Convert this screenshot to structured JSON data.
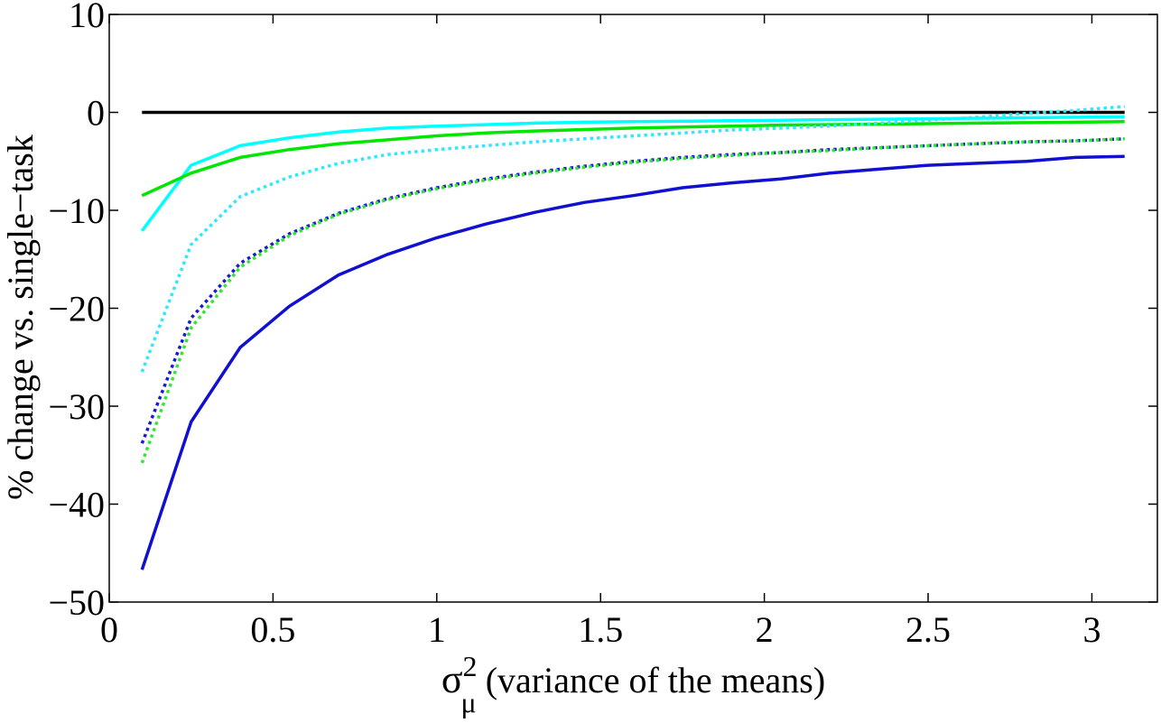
{
  "chart_data": {
    "type": "line",
    "title": "",
    "xlabel": {
      "symbol": "σ",
      "superscript": "2",
      "subscript": "μ",
      "text": "(variance of the means)"
    },
    "ylabel": "% change vs. single−task",
    "xlim": [
      0,
      3.2
    ],
    "ylim": [
      -50,
      10
    ],
    "xticks": [
      0,
      0.5,
      1,
      1.5,
      2,
      2.5,
      3
    ],
    "xtick_labels": [
      "0",
      "0.5",
      "1",
      "1.5",
      "2",
      "2.5",
      "3"
    ],
    "yticks": [
      -50,
      -40,
      -30,
      -20,
      -10,
      0,
      10
    ],
    "ytick_labels": [
      "−50",
      "−40",
      "−30",
      "−20",
      "−10",
      "0",
      "10"
    ],
    "grid": false,
    "legend": "none",
    "x": [
      0.1,
      0.25,
      0.4,
      0.55,
      0.7,
      0.85,
      1.0,
      1.15,
      1.3,
      1.45,
      1.6,
      1.75,
      1.9,
      2.05,
      2.2,
      2.35,
      2.5,
      2.65,
      2.8,
      2.95,
      3.1
    ],
    "series": [
      {
        "color": "#000000",
        "style": "solid",
        "values": [
          0,
          0,
          0,
          0,
          0,
          0,
          0,
          0,
          0,
          0,
          0,
          0,
          0,
          0,
          0,
          0,
          0,
          0,
          0,
          0,
          0
        ]
      },
      {
        "color": "#00ffff",
        "style": "solid",
        "values": [
          -12.1,
          -5.4,
          -3.4,
          -2.6,
          -2.0,
          -1.6,
          -1.4,
          -1.25,
          -1.1,
          -1.0,
          -0.95,
          -0.9,
          -0.85,
          -0.8,
          -0.75,
          -0.7,
          -0.65,
          -0.6,
          -0.55,
          -0.5,
          -0.45
        ]
      },
      {
        "color": "#00e600",
        "style": "solid",
        "values": [
          -8.5,
          -6.2,
          -4.6,
          -3.8,
          -3.2,
          -2.8,
          -2.4,
          -2.1,
          -1.9,
          -1.75,
          -1.6,
          -1.5,
          -1.4,
          -1.3,
          -1.25,
          -1.2,
          -1.15,
          -1.1,
          -1.05,
          -1.0,
          -0.95
        ]
      },
      {
        "color": "#33e6ff",
        "style": "dotted",
        "values": [
          -26.5,
          -13.5,
          -8.6,
          -6.6,
          -5.2,
          -4.3,
          -3.8,
          -3.4,
          -3.0,
          -2.7,
          -2.4,
          -2.1,
          -1.8,
          -1.6,
          -1.4,
          -1.1,
          -0.8,
          -0.5,
          -0.1,
          0.2,
          0.6
        ]
      },
      {
        "color": "#1a1acc",
        "style": "dotted",
        "values": [
          -33.8,
          -21.0,
          -15.4,
          -12.4,
          -10.3,
          -8.8,
          -7.7,
          -6.8,
          -6.1,
          -5.5,
          -5.0,
          -4.6,
          -4.3,
          -4.1,
          -3.8,
          -3.6,
          -3.4,
          -3.2,
          -3.0,
          -2.9,
          -2.7
        ]
      },
      {
        "color": "#33e633",
        "style": "dotted",
        "values": [
          -35.8,
          -22.0,
          -15.8,
          -12.6,
          -10.4,
          -8.9,
          -7.8,
          -6.9,
          -6.2,
          -5.6,
          -5.1,
          -4.7,
          -4.4,
          -4.1,
          -3.9,
          -3.6,
          -3.4,
          -3.2,
          -3.0,
          -2.9,
          -2.7
        ]
      },
      {
        "color": "#1010d0",
        "style": "solid",
        "values": [
          -46.7,
          -31.6,
          -24.0,
          -19.8,
          -16.6,
          -14.5,
          -12.8,
          -11.4,
          -10.2,
          -9.2,
          -8.5,
          -7.7,
          -7.2,
          -6.8,
          -6.2,
          -5.8,
          -5.4,
          -5.2,
          -5.0,
          -4.6,
          -4.5
        ]
      }
    ]
  }
}
